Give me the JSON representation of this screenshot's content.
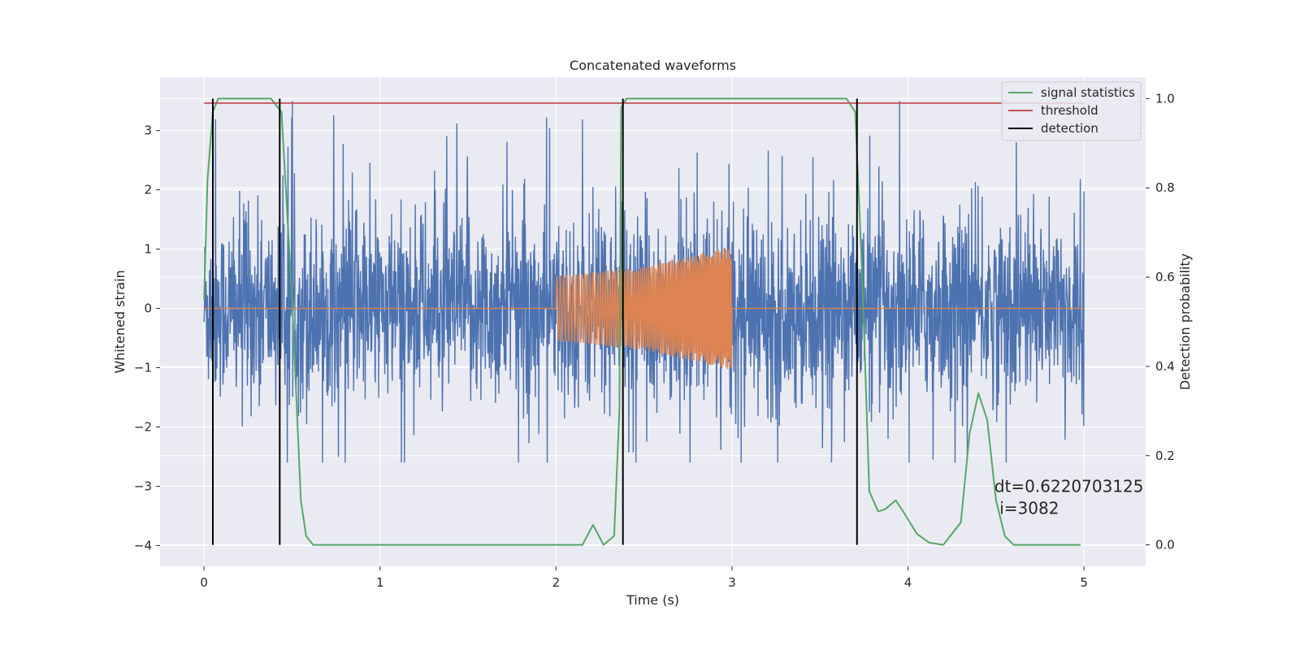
{
  "chart_data": {
    "type": "line",
    "title": "Concatenated waveforms",
    "xlabel": "Time (s)",
    "ylabel": "Whitened strain",
    "y2label": "Detection probability",
    "xlim": [
      -0.25,
      5.35
    ],
    "ylim": [
      -4.35,
      3.9
    ],
    "y2lim": [
      -0.048,
      1.048
    ],
    "xticks": [
      0,
      1,
      2,
      3,
      4,
      5
    ],
    "yticks": [
      -4,
      -3,
      -2,
      -1,
      0,
      1,
      2,
      3
    ],
    "y2ticks": [
      0.0,
      0.2,
      0.4,
      0.6,
      0.8,
      1.0
    ],
    "grid": true,
    "legend_position": "top-right",
    "colors": {
      "plot_bg": "#eaeaf2",
      "grid": "#ffffff",
      "strain": "#4c72b0",
      "injection": "#dd8452",
      "signal_statistics": "#55a868",
      "threshold": "#c44e52",
      "detection": "#000000"
    },
    "series": [
      {
        "name": "",
        "role": "whitened strain (noise)",
        "axis": "left",
        "x_range": [
          0,
          5
        ],
        "approx_amplitude_envelope": [
          -2.6,
          3.5
        ]
      },
      {
        "name": "",
        "role": "injected chirp waveform",
        "axis": "left",
        "x": [
          0,
          2.0,
          2.0,
          2.5,
          3.0,
          3.0,
          5.0
        ],
        "amplitude_envelope": [
          0,
          0,
          0.55,
          0.7,
          1.05,
          0,
          0
        ]
      },
      {
        "name": "signal statistics",
        "axis": "right",
        "x": [
          0,
          0.02,
          0.05,
          0.08,
          0.12,
          0.38,
          0.44,
          0.5,
          0.55,
          0.58,
          0.62,
          1.5,
          2.0,
          2.15,
          2.21,
          2.27,
          2.33,
          2.36,
          2.37,
          2.4,
          3.65,
          3.7,
          3.74,
          3.78,
          3.83,
          3.87,
          3.93,
          3.98,
          4.05,
          4.12,
          4.2,
          4.3,
          4.35,
          4.4,
          4.45,
          4.5,
          4.55,
          4.6,
          4.98
        ],
        "y": [
          0.55,
          0.82,
          0.97,
          1.0,
          1.0,
          1.0,
          0.97,
          0.55,
          0.1,
          0.02,
          0.0,
          0.0,
          0.0,
          0.0,
          0.045,
          0.0,
          0.02,
          0.3,
          0.98,
          1.0,
          1.0,
          0.97,
          0.6,
          0.12,
          0.075,
          0.08,
          0.1,
          0.07,
          0.025,
          0.005,
          0.0,
          0.05,
          0.25,
          0.34,
          0.28,
          0.1,
          0.02,
          0.0,
          0.0
        ]
      },
      {
        "name": "threshold",
        "axis": "right",
        "x": [
          0,
          5
        ],
        "y": [
          0.99,
          0.99
        ]
      },
      {
        "name": "detection",
        "axis": "right",
        "type": "vlines",
        "x": [
          0.05,
          0.43,
          2.38,
          3.71
        ],
        "y_range": [
          0.0,
          1.0
        ]
      }
    ],
    "annotation": {
      "line1": "dt=0.6220703125",
      "line2": " i=3082",
      "x": 4.5,
      "y": -3.0
    }
  }
}
